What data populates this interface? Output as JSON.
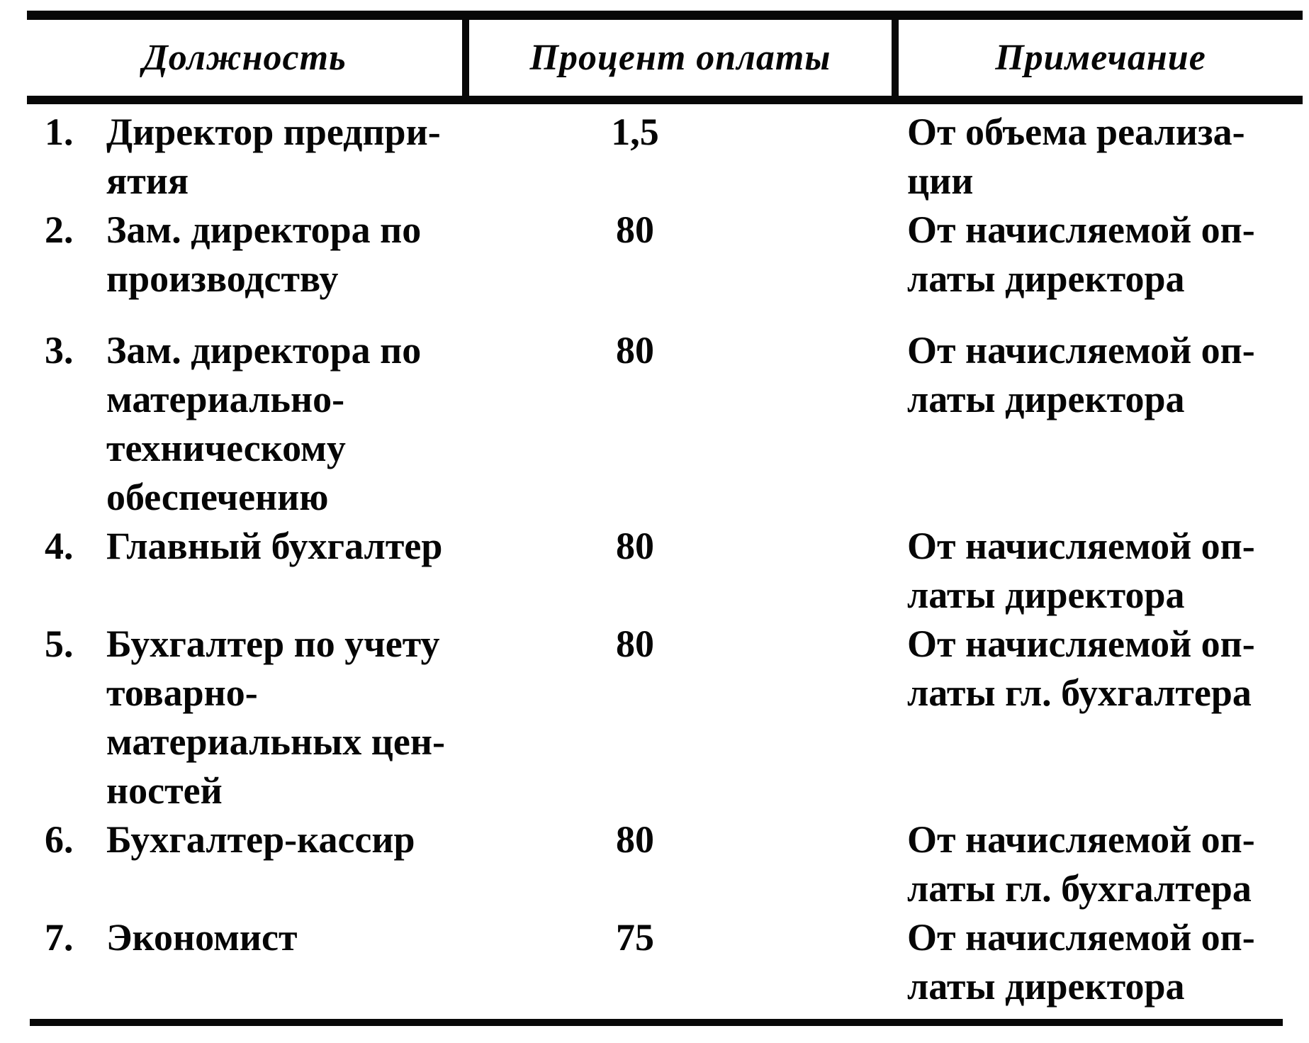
{
  "table": {
    "columns": [
      {
        "label": "Должность"
      },
      {
        "label": "Процент оплаты"
      },
      {
        "label": "Примечание"
      }
    ],
    "rows": [
      {
        "num": "1.",
        "position": "Директор предпри-\nятия",
        "percent": "1,5",
        "note": "От объема реализа-\nции"
      },
      {
        "num": "2.",
        "position": "Зам. директора по\nпроизводству",
        "percent": "80",
        "note": "От начисляемой оп-\nлаты директора"
      },
      {
        "num": "3.",
        "position": "Зам. директора по\nматериально-\nтехническому\nобеспечению",
        "percent": "80",
        "note": "От начисляемой оп-\nлаты директора"
      },
      {
        "num": "4.",
        "position": "Главный бухгалтер",
        "percent": "80",
        "note": "От начисляемой оп-\nлаты директора"
      },
      {
        "num": "5.",
        "position": "Бухгалтер по учету\nтоварно-\nматериальных цен-\nностей",
        "percent": "80",
        "note": "От начисляемой оп-\nлаты гл. бухгалтера"
      },
      {
        "num": "6.",
        "position": "Бухгалтер-кассир",
        "percent": "80",
        "note": "От начисляемой оп-\nлаты гл. бухгалтера"
      },
      {
        "num": "7.",
        "position": "Экономист",
        "percent": "75",
        "note": "От начисляемой оп-\nлаты директора"
      }
    ]
  }
}
